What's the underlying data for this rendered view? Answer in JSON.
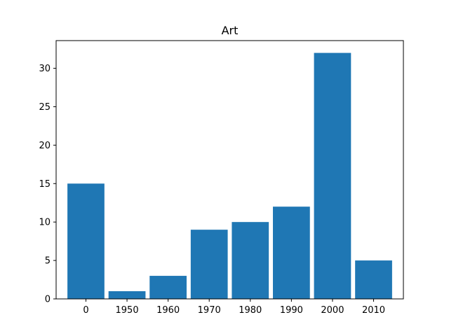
{
  "chart_data": {
    "type": "bar",
    "title": "Art",
    "xlabel": "",
    "ylabel": "",
    "categories": [
      "0",
      "1950",
      "1960",
      "1970",
      "1980",
      "1990",
      "2000",
      "2010"
    ],
    "values": [
      15,
      1,
      3,
      9,
      10,
      12,
      32,
      5
    ],
    "ylim": [
      0,
      33.6
    ],
    "yticks": [
      0,
      5,
      10,
      15,
      20,
      25,
      30
    ],
    "bar_color": "#1f77b4",
    "grid": false,
    "legend": "none"
  }
}
